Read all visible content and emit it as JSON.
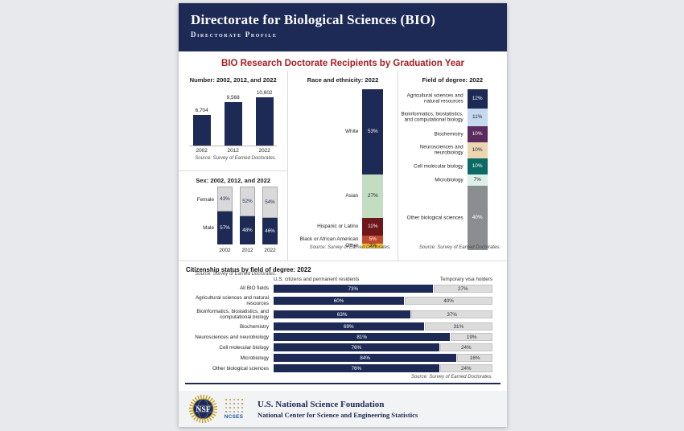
{
  "header": {
    "title": "Directorate for Biological Sciences (BIO)",
    "subtitle": "Directorate Profile"
  },
  "main_title": "BIO Research Doctorate Recipients by Graduation Year",
  "source_note": "Source: Survey of Earned Doctorates.",
  "colors": {
    "navy": "#1e2a56",
    "title_red": "#a81e22",
    "light_gray_bar": "#d9d9d9",
    "footer_bg": "#f2f3f5"
  },
  "chart_data": [
    {
      "id": "number",
      "type": "bar",
      "title": "Number: 2002, 2012, and 2022",
      "categories": [
        "2002",
        "2012",
        "2022"
      ],
      "values": [
        6704,
        9568,
        10602
      ],
      "labels": [
        "6,704",
        "9,568",
        "10,602"
      ],
      "bar_color": "#1e2a56",
      "ylim": [
        0,
        10602
      ],
      "source": "Source: Survey of Earned Doctorates."
    },
    {
      "id": "sex",
      "type": "stacked-bar",
      "title": "Sex: 2002, 2012, and 2022",
      "categories": [
        "2002",
        "2012",
        "2022"
      ],
      "series": [
        {
          "name": "Female",
          "values": [
            43,
            52,
            54
          ],
          "color": "#d9d9d9",
          "text_color": "#1e2a56"
        },
        {
          "name": "Male",
          "values": [
            57,
            48,
            46
          ],
          "color": "#1e2a56",
          "text_color": "#ffffff"
        }
      ],
      "unit": "%",
      "source": "Source: Survey of Earned Doctorates."
    },
    {
      "id": "race",
      "type": "stacked-bar",
      "title": "Race and ethnicity: 2022",
      "segments": [
        {
          "label": "White",
          "value": 53,
          "color": "#1e2a56",
          "text": "#ffffff"
        },
        {
          "label": "Asian",
          "value": 27,
          "color": "#c2ddc0",
          "text": "#222222"
        },
        {
          "label": "Hispanic or Latino",
          "value": 11,
          "color": "#6e171b",
          "text": "#ffffff"
        },
        {
          "label": "Black or African American",
          "value": 5,
          "color": "#c04a2e",
          "text": "#ffffff"
        },
        {
          "label": "Other",
          "value": 3,
          "color": "#f4c22f",
          "text": "#222222"
        }
      ],
      "unit": "%",
      "source": "Source: Survey of Earned Doctorates."
    },
    {
      "id": "field",
      "type": "stacked-bar",
      "title": "Field of degree: 2022",
      "segments": [
        {
          "label": "Agricultural sciences and natural resources",
          "value": 12,
          "color": "#1e2a56",
          "text": "#ffffff"
        },
        {
          "label": "Bioinformatics, biostatistics, and computational biology",
          "value": 11,
          "color": "#c4d9ee",
          "text": "#222222"
        },
        {
          "label": "Biochemistry",
          "value": 10,
          "color": "#5b2a5e",
          "text": "#ffffff"
        },
        {
          "label": "Neurosciences and neurobiology",
          "value": 10,
          "color": "#ead7b2",
          "text": "#222222"
        },
        {
          "label": "Cell molecular biology",
          "value": 10,
          "color": "#0b6a64",
          "text": "#ffffff"
        },
        {
          "label": "Microbiology",
          "value": 7,
          "color": "#dcefe9",
          "text": "#222222"
        },
        {
          "label": "Other biological sciences",
          "value": 40,
          "color": "#8b8e91",
          "text": "#ffffff"
        }
      ],
      "unit": "%",
      "source": "Source: Survey of Earned Doctorates."
    },
    {
      "id": "citizenship",
      "type": "stacked-bar-horizontal",
      "title": "Citizenship status by field of degree: 2022",
      "legend": [
        "U.S. citizens and permanent residents",
        "Temporary visa holders"
      ],
      "colors": {
        "us": "#1e2a56",
        "visa": "#dcdcdc"
      },
      "rows": [
        {
          "label": "All BIO fields",
          "us": 73,
          "visa": 27
        },
        {
          "label": "Agricultural sciences and natural resources",
          "us": 60,
          "visa": 40
        },
        {
          "label": "Bioinformatics, biostatistics, and computational biology",
          "us": 63,
          "visa": 37
        },
        {
          "label": "Biochemistry",
          "us": 69,
          "visa": 31
        },
        {
          "label": "Neurosciences and neurobiology",
          "us": 81,
          "visa": 19
        },
        {
          "label": "Cell molecular biology",
          "us": 76,
          "visa": 24
        },
        {
          "label": "Microbiology",
          "us": 84,
          "visa": 16
        },
        {
          "label": "Other biological sciences",
          "us": 76,
          "visa": 24
        }
      ],
      "unit": "%",
      "source": "Source: Survey of Earned Doctorates."
    }
  ],
  "footer": {
    "nsf_logo_text": "NSF",
    "ncses_logo_text": "NCSES",
    "org": "U.S. National Science Foundation",
    "center": "National Center for Science and Engineering Statistics"
  }
}
